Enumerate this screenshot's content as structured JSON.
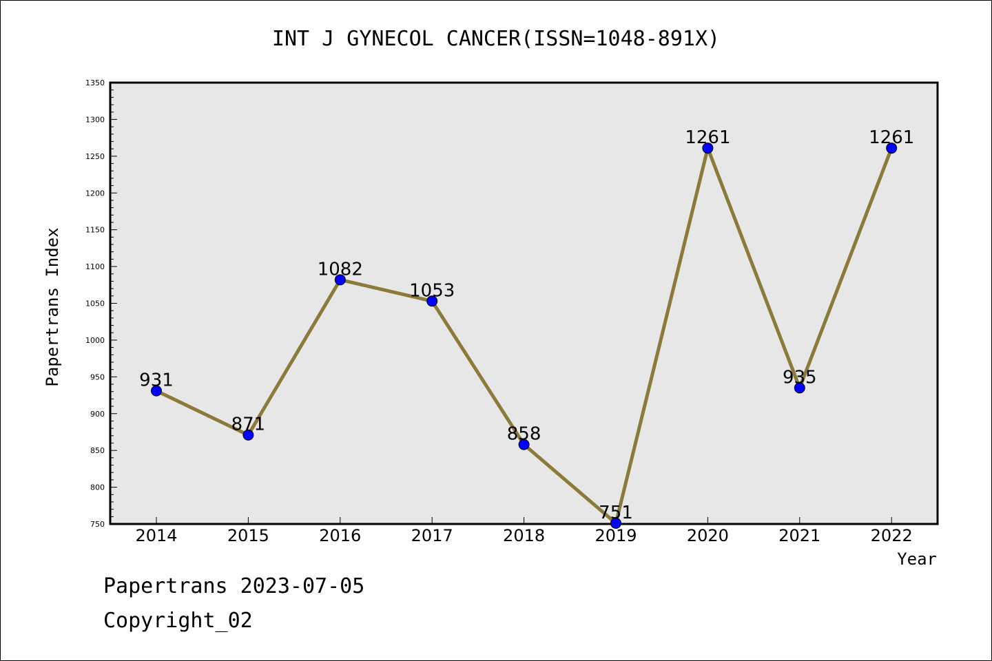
{
  "chart_data": {
    "type": "line",
    "title": "INT J GYNECOL CANCER(ISSN=1048-891X)",
    "xlabel": "Year",
    "ylabel": "Papertrans Index",
    "categories": [
      "2014",
      "2015",
      "2016",
      "2017",
      "2018",
      "2019",
      "2020",
      "2021",
      "2022"
    ],
    "series": [
      {
        "values": [
          931,
          871,
          1082,
          1053,
          858,
          751,
          1261,
          935,
          1261
        ]
      }
    ],
    "ylim": [
      750,
      1350
    ],
    "ytick_step": 50,
    "yticks": [
      "750",
      "800",
      "850",
      "900",
      "950",
      "1000",
      "1050",
      "1100",
      "1150",
      "1200",
      "1250",
      "1300",
      "1350"
    ],
    "grid": false,
    "legend": "none",
    "colors": {
      "line": "#8b7a3a",
      "marker": "#0000ff",
      "plot_background": "#e7e7e7"
    }
  },
  "footer": {
    "line1": "Papertrans 2023-07-05",
    "line2": "Copyright_02"
  }
}
